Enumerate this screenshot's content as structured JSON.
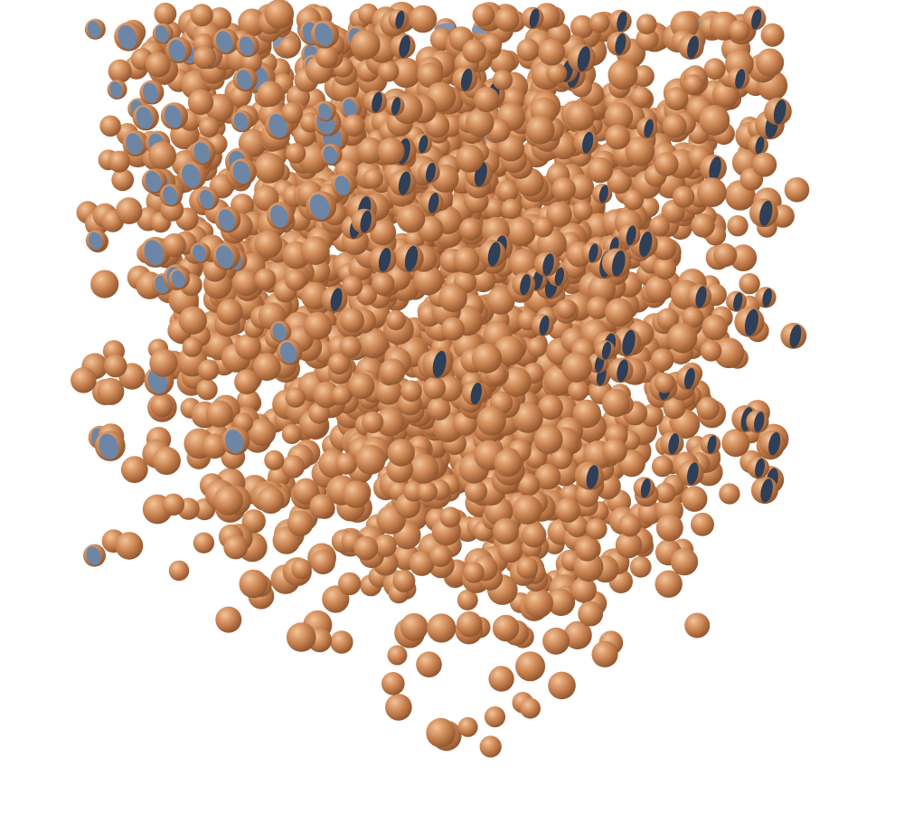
{
  "scene": {
    "background_color": "#ffffff",
    "particle_color": "#d08a58",
    "particle_highlight_color": "#f2c49a",
    "particle_shadow_color": "#8a4e28",
    "cut_face_color_front": "#6d86a6",
    "cut_face_color_side": "#2e3f57",
    "cut_face_color_top": "#7f95b3"
  }
}
